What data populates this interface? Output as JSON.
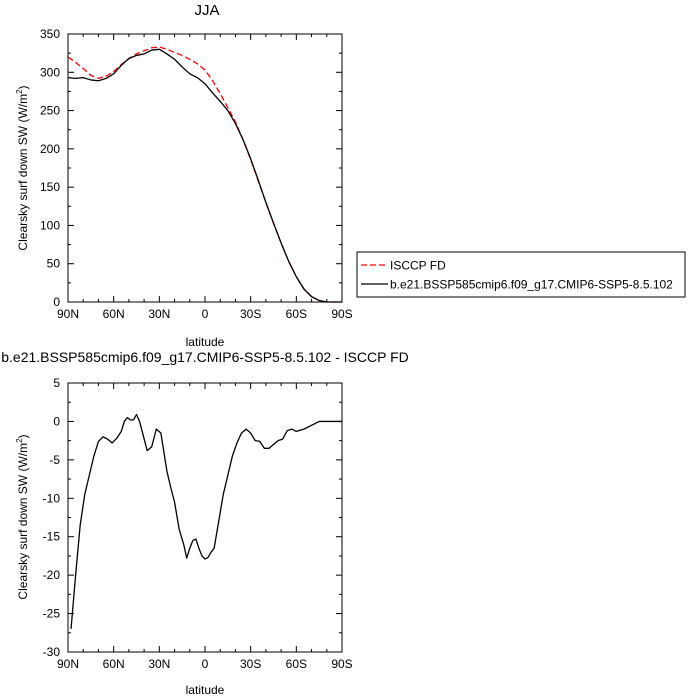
{
  "chart_data": [
    {
      "type": "line",
      "title": "JJA",
      "xlabel": "latitude",
      "ylabel": "Clearsky surf down SW (W/m",
      "ylabel_sup": "2",
      "ylabel_close": ")",
      "xlim": [
        90,
        -90
      ],
      "ylim": [
        0,
        350
      ],
      "xticks": [
        90,
        60,
        30,
        0,
        -30,
        -60,
        -90
      ],
      "xtick_labels": [
        "90N",
        "60N",
        "30N",
        "0",
        "30S",
        "60S",
        "90S"
      ],
      "yticks": [
        0,
        50,
        100,
        150,
        200,
        250,
        300,
        350
      ],
      "ytick_labels": [
        "0",
        "50",
        "100",
        "150",
        "200",
        "250",
        "300",
        "350"
      ],
      "legend_position": "right",
      "series": [
        {
          "name": "ISCCP FD",
          "color": "#ff0000",
          "dash": "dashed",
          "x": [
            90,
            85,
            80,
            75,
            70,
            65,
            60,
            55,
            50,
            45,
            40,
            35,
            30,
            25,
            20,
            15,
            10,
            5,
            0,
            -5,
            -10,
            -15,
            -20,
            -25,
            -30,
            -35,
            -40,
            -45,
            -50,
            -55,
            -60,
            -65,
            -70,
            -75,
            -80,
            -85,
            -90
          ],
          "y": [
            320,
            313,
            305,
            296,
            292,
            295,
            301,
            310,
            318,
            324,
            328,
            332,
            333,
            330,
            326,
            322,
            317,
            311,
            303,
            289,
            272,
            254,
            235,
            212,
            186,
            158,
            130,
            103,
            77,
            53,
            33,
            17,
            7,
            2,
            0,
            0,
            0
          ]
        },
        {
          "name": "b.e21.BSSP585cmip6.f09_g17.CMIP6-SSP5-8.5.102",
          "color": "#000000",
          "dash": "solid",
          "x": [
            90,
            85,
            80,
            75,
            70,
            65,
            60,
            55,
            50,
            45,
            40,
            35,
            30,
            25,
            20,
            15,
            10,
            5,
            0,
            -5,
            -10,
            -15,
            -20,
            -25,
            -30,
            -35,
            -40,
            -45,
            -50,
            -55,
            -60,
            -65,
            -70,
            -75,
            -80,
            -85,
            -90
          ],
          "y": [
            293,
            292,
            293,
            290,
            289,
            292,
            298,
            309,
            318,
            322,
            324,
            329,
            330,
            324,
            317,
            307,
            298,
            293,
            285,
            273,
            262,
            250,
            233,
            212,
            187,
            159,
            130,
            103,
            77,
            53,
            33,
            17,
            7,
            2,
            0,
            0,
            0
          ]
        }
      ]
    },
    {
      "type": "line",
      "title": "b.e21.BSSP585cmip6.f09_g17.CMIP6-SSP5-8.5.102 - ISCCP FD",
      "xlabel": "latitude",
      "ylabel": "Clearsky surf down SW (W/m",
      "ylabel_sup": "2",
      "ylabel_close": ")",
      "xlim": [
        90,
        -90
      ],
      "ylim": [
        -30,
        5
      ],
      "xticks": [
        90,
        60,
        30,
        0,
        -30,
        -60,
        -90
      ],
      "xtick_labels": [
        "90N",
        "60N",
        "30N",
        "0",
        "30S",
        "60S",
        "90S"
      ],
      "yticks": [
        5,
        0,
        -5,
        -10,
        -15,
        -20,
        -25,
        -30
      ],
      "ytick_labels": [
        "5",
        "0",
        "-5",
        "-10",
        "-15",
        "-20",
        "-25",
        "-30"
      ],
      "series": [
        {
          "color": "#000000",
          "dash": "solid",
          "x": [
            88,
            85,
            82,
            79,
            76,
            73,
            70,
            67,
            64,
            61,
            58,
            55,
            53,
            51,
            49,
            47,
            45,
            43,
            41,
            38,
            35,
            32,
            29,
            27,
            25,
            22,
            20,
            17,
            14,
            12,
            10,
            8,
            6,
            4,
            2,
            0,
            -2,
            -4,
            -6,
            -9,
            -12,
            -15,
            -18,
            -21,
            -24,
            -27,
            -30,
            -33,
            -36,
            -39,
            -42,
            -45,
            -48,
            -51,
            -54,
            -57,
            -60,
            -65,
            -70,
            -75,
            -80,
            -85,
            -90
          ],
          "y": [
            -27,
            -20,
            -13.5,
            -9.5,
            -7,
            -4.5,
            -2.6,
            -2,
            -2.3,
            -2.8,
            -2.2,
            -1.3,
            0,
            0.5,
            0.2,
            0.2,
            0.9,
            0,
            -1.5,
            -3.8,
            -3.3,
            -1,
            -1.5,
            -4,
            -6.5,
            -9,
            -10.5,
            -14,
            -16,
            -17.8,
            -16.5,
            -15.5,
            -15.3,
            -16.5,
            -17.5,
            -17.9,
            -17.7,
            -17,
            -16.5,
            -13,
            -9.5,
            -7,
            -4.5,
            -2.8,
            -1.5,
            -1,
            -1.5,
            -2.5,
            -2.6,
            -3.5,
            -3.5,
            -3,
            -2.5,
            -2.3,
            -1.2,
            -1,
            -1.3,
            -1,
            -0.5,
            0,
            0,
            0,
            0
          ]
        }
      ]
    }
  ]
}
